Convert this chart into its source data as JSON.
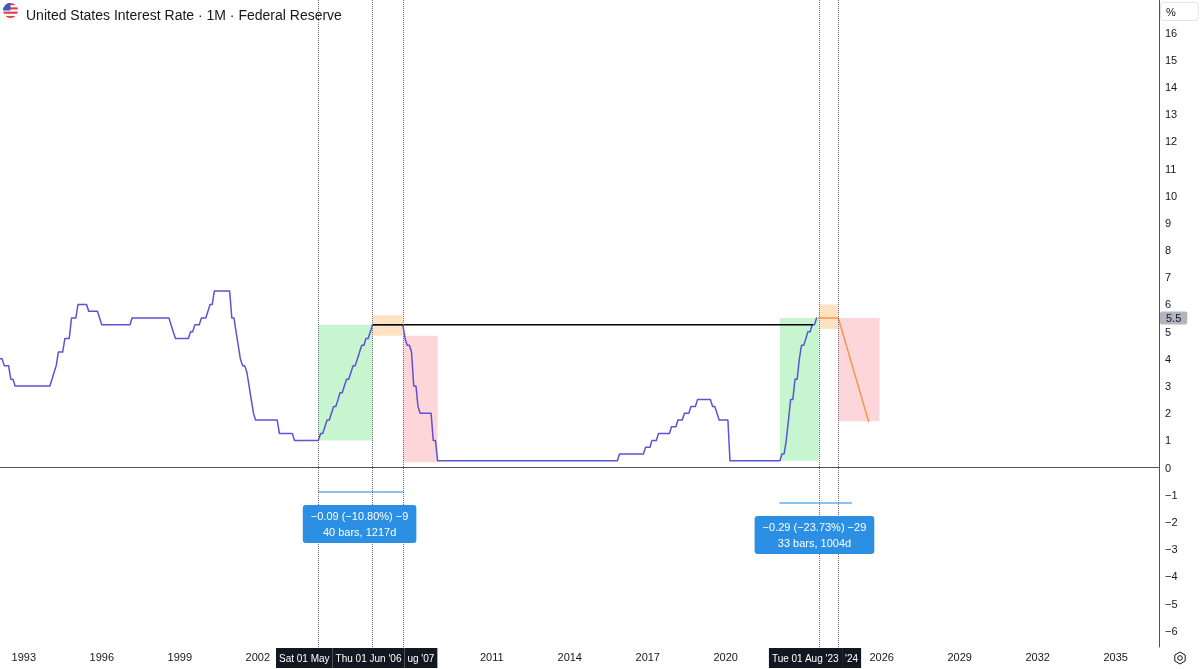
{
  "chart_data": {
    "type": "line",
    "title": "United States Interest Rate · 1M · Federal Reserve",
    "ylabel": "%",
    "x": [
      "1992-02",
      "1992-03",
      "1992-04",
      "1992-06",
      "1992-07",
      "1992-08",
      "1992-09",
      "1994-01",
      "1994-02",
      "1994-03",
      "1994-04",
      "1994-05",
      "1994-07",
      "1994-08",
      "1994-10",
      "1994-11",
      "1995-01",
      "1995-02",
      "1995-06",
      "1995-07",
      "1995-11",
      "1995-12",
      "1996-01",
      "1997-02",
      "1997-03",
      "1998-08",
      "1998-09",
      "1998-10",
      "1998-11",
      "1999-05",
      "1999-06",
      "1999-07",
      "1999-08",
      "1999-10",
      "1999-11",
      "2000-01",
      "2000-02",
      "2000-03",
      "2000-04",
      "2000-05",
      "2000-12",
      "2001-01",
      "2001-02",
      "2001-03",
      "2001-04",
      "2001-05",
      "2001-06",
      "2001-07",
      "2001-08",
      "2001-09",
      "2001-10",
      "2001-11",
      "2001-12",
      "2002-10",
      "2002-11",
      "2003-05",
      "2003-06",
      "2004-05",
      "2004-06",
      "2004-07",
      "2004-08",
      "2004-09",
      "2004-10",
      "2004-11",
      "2004-12",
      "2005-01",
      "2005-02",
      "2005-03",
      "2005-04",
      "2005-05",
      "2005-06",
      "2005-07",
      "2005-08",
      "2005-09",
      "2005-10",
      "2005-11",
      "2005-12",
      "2006-01",
      "2006-02",
      "2006-03",
      "2006-04",
      "2006-05",
      "2006-06",
      "2007-08",
      "2007-09",
      "2007-10",
      "2007-11",
      "2007-12",
      "2008-01",
      "2008-02",
      "2008-03",
      "2008-04",
      "2008-09",
      "2008-10",
      "2008-11",
      "2008-12",
      "2015-11",
      "2015-12",
      "2016-11",
      "2016-12",
      "2017-02",
      "2017-03",
      "2017-05",
      "2017-06",
      "2017-11",
      "2017-12",
      "2018-02",
      "2018-03",
      "2018-05",
      "2018-06",
      "2018-08",
      "2018-09",
      "2018-11",
      "2018-12",
      "2019-06",
      "2019-07",
      "2019-08",
      "2019-09",
      "2019-10",
      "2020-02",
      "2020-03",
      "2022-02",
      "2022-03",
      "2022-04",
      "2022-05",
      "2022-06",
      "2022-07",
      "2022-08",
      "2022-09",
      "2022-10",
      "2022-11",
      "2022-12",
      "2023-01",
      "2023-02",
      "2023-03",
      "2023-04",
      "2023-05",
      "2023-06",
      "2023-07"
    ],
    "series": [
      {
        "color": "#5b53d9",
        "values": [
          4,
          4,
          3.75,
          3.75,
          3.25,
          3.25,
          3,
          3,
          3.25,
          3.5,
          3.75,
          4.25,
          4.25,
          4.75,
          4.75,
          5.5,
          5.5,
          6,
          6,
          5.75,
          5.75,
          5.5,
          5.25,
          5.25,
          5.5,
          5.5,
          5.25,
          5,
          4.75,
          4.75,
          5,
          5,
          5.25,
          5.25,
          5.5,
          5.5,
          5.75,
          6,
          6,
          6.5,
          6.5,
          5.5,
          5.5,
          5,
          4.5,
          4,
          3.75,
          3.75,
          3.5,
          3,
          2.5,
          2,
          1.75,
          1.75,
          1.25,
          1.25,
          1,
          1,
          1.25,
          1.25,
          1.5,
          1.75,
          1.75,
          2,
          2.25,
          2.25,
          2.5,
          2.75,
          2.75,
          3,
          3.25,
          3.25,
          3.5,
          3.75,
          3.75,
          4,
          4.25,
          4.5,
          4.5,
          4.75,
          4.75,
          5,
          5.25,
          5.25,
          4.75,
          4.5,
          4.5,
          4.25,
          3,
          3,
          2.25,
          2,
          2,
          1,
          1,
          0.25,
          0.25,
          0.5,
          0.5,
          0.75,
          0.75,
          1,
          1,
          1.25,
          1.25,
          1.5,
          1.5,
          1.75,
          1.75,
          2,
          2,
          2.25,
          2.25,
          2.5,
          2.5,
          2.25,
          2.25,
          2,
          1.75,
          1.75,
          0.25,
          0.25,
          0.5,
          0.5,
          1,
          1.75,
          2.5,
          2.5,
          3.25,
          3.25,
          4,
          4.5,
          4.5,
          4.75,
          5,
          5,
          5.25,
          5.25,
          5.5
        ]
      },
      {
        "type": "line",
        "color": "#c7f5cf",
        "x": [
          "2004-05",
          "2006-06"
        ],
        "values": [
          null,
          null
        ],
        "lower": [
          1,
          1
        ],
        "upper": [
          5.25,
          5.25
        ]
      },
      {
        "type": "line",
        "color": "#fde3c4",
        "x": [
          "2006-06",
          "2007-08"
        ],
        "values": [
          null,
          null
        ],
        "lower": [
          4.85,
          4.85
        ],
        "upper": [
          5.6,
          5.6
        ]
      },
      {
        "type": "line",
        "color": "#fdd6da",
        "x": [
          "2007-08",
          "2008-12"
        ],
        "values": [
          null,
          null
        ],
        "lower": [
          0.2,
          0.2
        ],
        "upper": [
          4.85,
          4.85
        ]
      },
      {
        "type": "line",
        "color": "#c7f5cf",
        "x": [
          "2022-02",
          "2023-08"
        ],
        "values": [
          null,
          null
        ],
        "lower": [
          0.25,
          0.25
        ],
        "upper": [
          5.5,
          5.5
        ]
      },
      {
        "type": "line",
        "color": "#fde3c4",
        "x": [
          "2023-08",
          "2024-05"
        ],
        "values": [
          null,
          null
        ],
        "lower": [
          5.1,
          5.1
        ],
        "upper": [
          6,
          6
        ]
      },
      {
        "type": "line",
        "color": "#fdd6da",
        "x": [
          "2024-05",
          "2025-12"
        ],
        "values": [
          null,
          null
        ],
        "lower": [
          1.7,
          1.7
        ],
        "upper": [
          5.5,
          5.5
        ]
      },
      {
        "type": "line",
        "color": "#000000",
        "x": [
          "2006-06",
          "2023-05"
        ],
        "values": [
          5.25,
          5.25
        ]
      },
      {
        "type": "line",
        "color": "#f6964a",
        "x": [
          "2023-08",
          "2024-05",
          "2025-07"
        ],
        "values": [
          5.5,
          5.5,
          1.7
        ]
      },
      {
        "type": "line",
        "color": "#64aef0",
        "x": [
          "2004-05",
          "2007-08"
        ],
        "values": [
          -0.9,
          -0.9
        ]
      },
      {
        "type": "line",
        "color": "#64aef0",
        "x": [
          "2022-02",
          "2024-11"
        ],
        "values": [
          -1.3,
          -1.3
        ]
      }
    ],
    "xlim": [
      "1992-02",
      "2036-09"
    ],
    "xticks": [
      "1993",
      "1996",
      "1999",
      "2002",
      "2011",
      "2014",
      "2017",
      "2020",
      "2026",
      "2029",
      "2032",
      "2035"
    ],
    "ylim": [
      -6.6,
      17.2
    ],
    "yticks": [
      {
        "value": -6,
        "label": "−6"
      },
      {
        "value": -5,
        "label": "−5"
      },
      {
        "value": -4,
        "label": "−4"
      },
      {
        "value": -3,
        "label": "−3"
      },
      {
        "value": -2,
        "label": "−2"
      },
      {
        "value": -1,
        "label": "−1"
      },
      0,
      1,
      2,
      3,
      4,
      5,
      6,
      7,
      8,
      9,
      10,
      11,
      12,
      13,
      14,
      15,
      16
    ],
    "ref_lines": [
      {
        "axis": "x",
        "value": "2004-05",
        "label": "Sat 01 May",
        "color": "#6a6d78",
        "line_style": "dotted"
      },
      {
        "axis": "x",
        "value": "2006-06",
        "label": "Thu 01 Jun '06",
        "color": "#6a6d78",
        "line_style": "dotted"
      },
      {
        "axis": "x",
        "value": "2007-08",
        "label": "ug '07",
        "color": "#6a6d78",
        "line_style": "dotted"
      },
      {
        "axis": "x",
        "value": "2023-08",
        "label": "Tue 01 Aug '23",
        "color": "#6a6d78",
        "line_style": "dotted"
      },
      {
        "axis": "x",
        "value": "2024-05",
        "label": "'24",
        "color": "#6a6d78",
        "line_style": "dotted"
      }
    ],
    "annotations": [
      {
        "text": "−0.09 (−10.80%) −9\n40 bars, 1217d",
        "x": "2005-12",
        "y": -0.9
      },
      {
        "text": "−0.29 (−23.73%) −29\n33 bars, 1004d",
        "x": "2023-06",
        "y": -1.3
      },
      {
        "text": "5.5",
        "y": 5.5
      }
    ]
  }
}
